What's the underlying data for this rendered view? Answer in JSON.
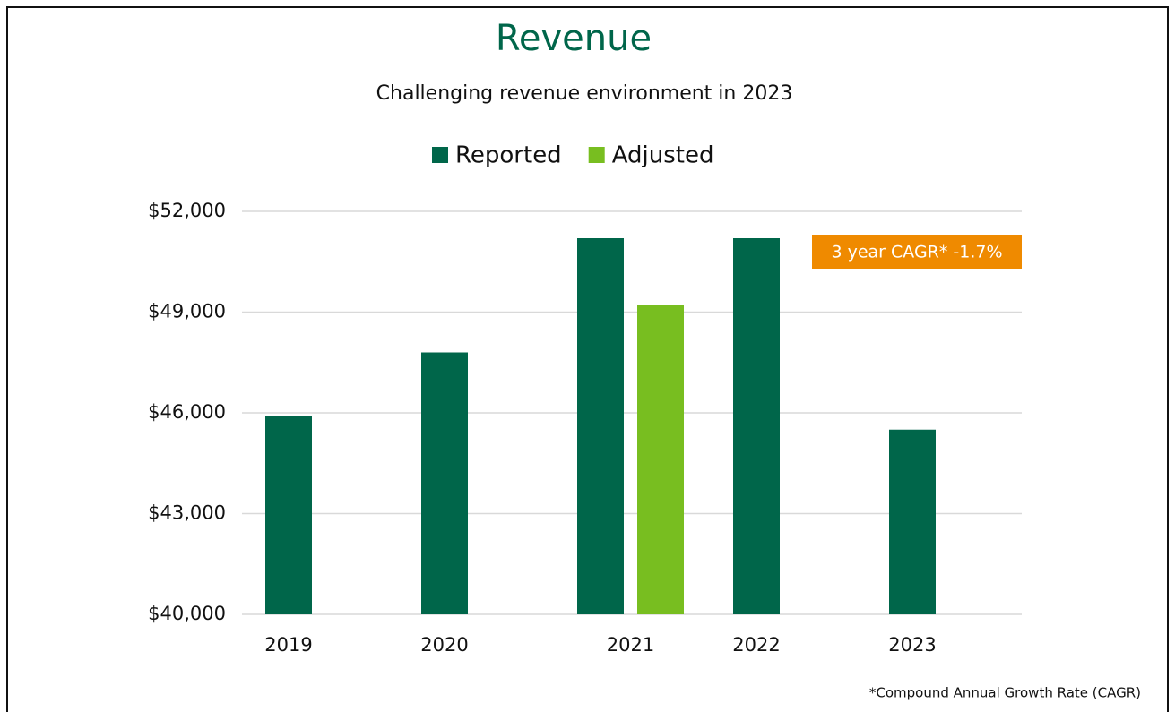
{
  "chart_data": {
    "type": "bar",
    "title": "Revenue",
    "subtitle": "Challenging revenue environment in 2023",
    "categories": [
      "2019",
      "2020",
      "2021",
      "2022",
      "2023"
    ],
    "series": [
      {
        "name": "Reported",
        "color": "#00664a",
        "values": [
          45900,
          47800,
          51200,
          51200,
          45500
        ]
      },
      {
        "name": "Adjusted",
        "color": "#78be20",
        "values": [
          null,
          null,
          49200,
          null,
          null
        ]
      }
    ],
    "ylim": [
      40000,
      52000
    ],
    "yticks": [
      {
        "value": 40000,
        "label": "$40,000"
      },
      {
        "value": 43000,
        "label": "$43,000"
      },
      {
        "value": 46000,
        "label": "$46,000"
      },
      {
        "value": 49000,
        "label": "$49,000"
      },
      {
        "value": 52000,
        "label": "$52,000"
      }
    ],
    "grid": true,
    "legend": "top",
    "annotation": "3 year CAGR* -1.7%",
    "footnote": "*Compound Annual Growth Rate (CAGR)"
  }
}
